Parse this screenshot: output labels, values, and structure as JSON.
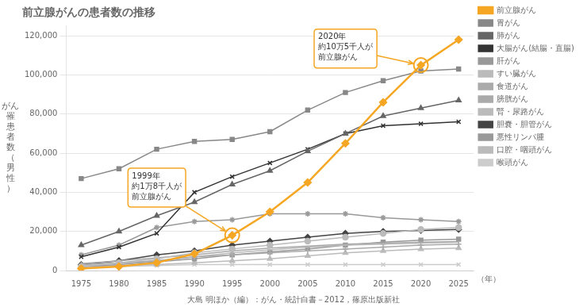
{
  "chart_data": {
    "type": "line",
    "title": "前立腺がんの患者数の推移",
    "xlabel": "（年）",
    "ylabel": "がん\n罹\n患\n者\n数\n（\n男\n性\n）",
    "caption": "大島 明ほか（編）：がん・統計白書－2012，篠原出版新社",
    "x": [
      1975,
      1980,
      1985,
      1990,
      1995,
      2000,
      2005,
      2010,
      2015,
      2020,
      2025
    ],
    "series": [
      {
        "name": "前立腺がん",
        "color": "#F5A623",
        "marker": "diamond",
        "values": [
          1000,
          2000,
          4000,
          8500,
          18000,
          30000,
          45000,
          65000,
          86000,
          105000,
          118000
        ]
      },
      {
        "name": "胃がん",
        "color": "#888888",
        "marker": "square",
        "values": [
          47000,
          52000,
          62000,
          66000,
          67000,
          71000,
          82000,
          91000,
          97000,
          102000,
          103000
        ]
      },
      {
        "name": "肺がん",
        "color": "#666666",
        "marker": "triangle",
        "values": [
          13000,
          20000,
          28000,
          35000,
          44000,
          51000,
          61000,
          70000,
          79000,
          83000,
          87000
        ]
      },
      {
        "name": "大腸がん(結腸・直腸)",
        "color": "#333333",
        "marker": "x",
        "values": [
          7000,
          12000,
          19000,
          40000,
          48000,
          55000,
          62000,
          70000,
          74000,
          75000,
          76000
        ]
      },
      {
        "name": "肝がん",
        "color": "#999999",
        "marker": "star",
        "values": [
          8000,
          13000,
          22000,
          25000,
          26000,
          29000,
          29000,
          29000,
          27000,
          26000,
          25000
        ]
      },
      {
        "name": "すい臓がん",
        "color": "#bbbbbb",
        "marker": "circle",
        "values": [
          2000,
          4000,
          6000,
          9000,
          11000,
          13000,
          15000,
          17000,
          19000,
          21000,
          22000
        ]
      },
      {
        "name": "食道がん",
        "color": "#aaaaaa",
        "marker": "plus",
        "values": [
          3000,
          4000,
          5000,
          7000,
          8000,
          9000,
          10000,
          11000,
          12000,
          13000,
          13500
        ]
      },
      {
        "name": "膀胱がん",
        "color": "#aaaaaa",
        "marker": "none",
        "values": [
          3500,
          5000,
          6500,
          8000,
          10000,
          11500,
          12500,
          13500,
          14000,
          14500,
          14800
        ]
      },
      {
        "name": "腎・尿路がん",
        "color": "#bbbbbb",
        "marker": "none",
        "values": [
          2500,
          3500,
          5000,
          7000,
          9000,
          10500,
          12000,
          13000,
          13500,
          14000,
          14500
        ]
      },
      {
        "name": "胆嚢・胆管がん",
        "color": "#444444",
        "marker": "diamond",
        "values": [
          3000,
          5000,
          8000,
          10000,
          13000,
          15000,
          17000,
          19000,
          20000,
          20500,
          21000
        ]
      },
      {
        "name": "悪性リンパ腫",
        "color": "#999999",
        "marker": "square",
        "values": [
          2000,
          3000,
          4500,
          6000,
          8000,
          9500,
          11000,
          13000,
          14500,
          15500,
          16000
        ]
      },
      {
        "name": "口腔・咽頭がん",
        "color": "#bbbbbb",
        "marker": "triangle",
        "values": [
          2000,
          2500,
          3000,
          4000,
          5000,
          6000,
          7500,
          9000,
          10000,
          11000,
          11500
        ]
      },
      {
        "name": "喉頭がん",
        "color": "#cccccc",
        "marker": "x",
        "values": [
          1500,
          2000,
          2500,
          3000,
          3000,
          3000,
          3000,
          3000,
          3000,
          3000,
          3000
        ]
      }
    ],
    "xlim": [
      1973,
      2027
    ],
    "xticks": [
      1975,
      1980,
      1985,
      1990,
      1995,
      2000,
      2005,
      2010,
      2015,
      2020,
      2025
    ],
    "ylim": [
      0,
      125000
    ],
    "yticks": [
      0,
      {
        "value": 20000,
        "label": "20,000"
      },
      {
        "value": 40000,
        "label": "40,000"
      },
      {
        "value": 60000,
        "label": "60,000"
      },
      {
        "value": 80000,
        "label": "80,000"
      },
      {
        "value": 100000,
        "label": "100,000"
      },
      {
        "value": 120000,
        "label": "120,000"
      }
    ],
    "grid": "y",
    "legend": "right",
    "annotations": [
      {
        "text": "1999年\n約1万8千人が\n前立腺がん",
        "x": 1995,
        "y": 18000,
        "color": "#F5A623"
      },
      {
        "text": "2020年\n約10万5千人が\n前立腺がん",
        "x": 2020,
        "y": 105000,
        "color": "#F5A623"
      }
    ]
  }
}
